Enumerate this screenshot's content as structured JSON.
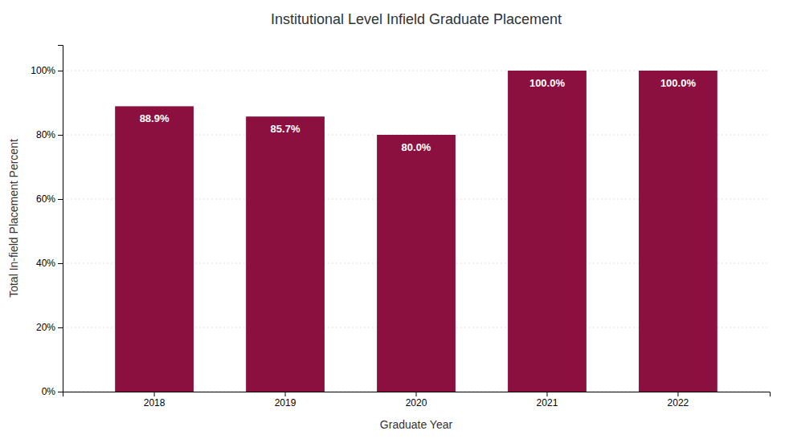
{
  "chart_data": {
    "type": "bar",
    "title": "Institutional Level Infield Graduate Placement",
    "xlabel": "Graduate Year",
    "ylabel": "Total In-field Placement Percent",
    "categories": [
      "2018",
      "2019",
      "2020",
      "2021",
      "2022"
    ],
    "values": [
      88.9,
      85.7,
      80.0,
      100.0,
      100.0
    ],
    "value_labels": [
      "88.9%",
      "85.7%",
      "80.0%",
      "100.0%",
      "100.0%"
    ],
    "color": "#8B1040",
    "ylim": [
      0,
      108
    ],
    "yticks": [
      {
        "value": 0,
        "label": "0%"
      },
      {
        "value": 20,
        "label": "20%"
      },
      {
        "value": 40,
        "label": "40%"
      },
      {
        "value": 60,
        "label": "60%"
      },
      {
        "value": 80,
        "label": "80%"
      },
      {
        "value": 100,
        "label": "100%"
      }
    ],
    "grid": true,
    "data_labels": true
  }
}
